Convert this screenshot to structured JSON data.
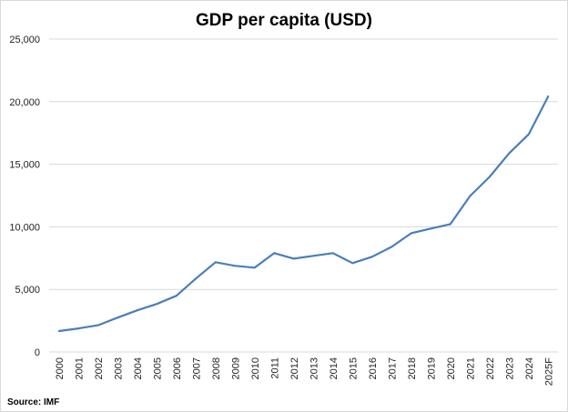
{
  "chart_data": {
    "type": "line",
    "title": "GDP per capita (USD)",
    "source": "Source: IMF",
    "xlabel": "",
    "ylabel": "",
    "ylim": [
      0,
      25000
    ],
    "yticks": [
      "0",
      "5,000",
      "10,000",
      "15,000",
      "20,000",
      "25,000"
    ],
    "ytick_values": [
      0,
      5000,
      10000,
      15000,
      20000,
      25000
    ],
    "grid": true,
    "legend": "none",
    "line_color": "#4a7ebb",
    "categories": [
      "2000",
      "2001",
      "2002",
      "2003",
      "2004",
      "2005",
      "2006",
      "2007",
      "2008",
      "2009",
      "2010",
      "2011",
      "2012",
      "2013",
      "2014",
      "2015",
      "2016",
      "2017",
      "2018",
      "2019",
      "2020",
      "2021",
      "2022",
      "2023",
      "2024",
      "2025F"
    ],
    "values": [
      1670,
      1880,
      2140,
      2750,
      3330,
      3840,
      4490,
      5870,
      7170,
      6880,
      6740,
      7900,
      7460,
      7680,
      7900,
      7100,
      7610,
      8400,
      9490,
      9860,
      10220,
      12460,
      13990,
      15870,
      17390,
      20430
    ]
  }
}
